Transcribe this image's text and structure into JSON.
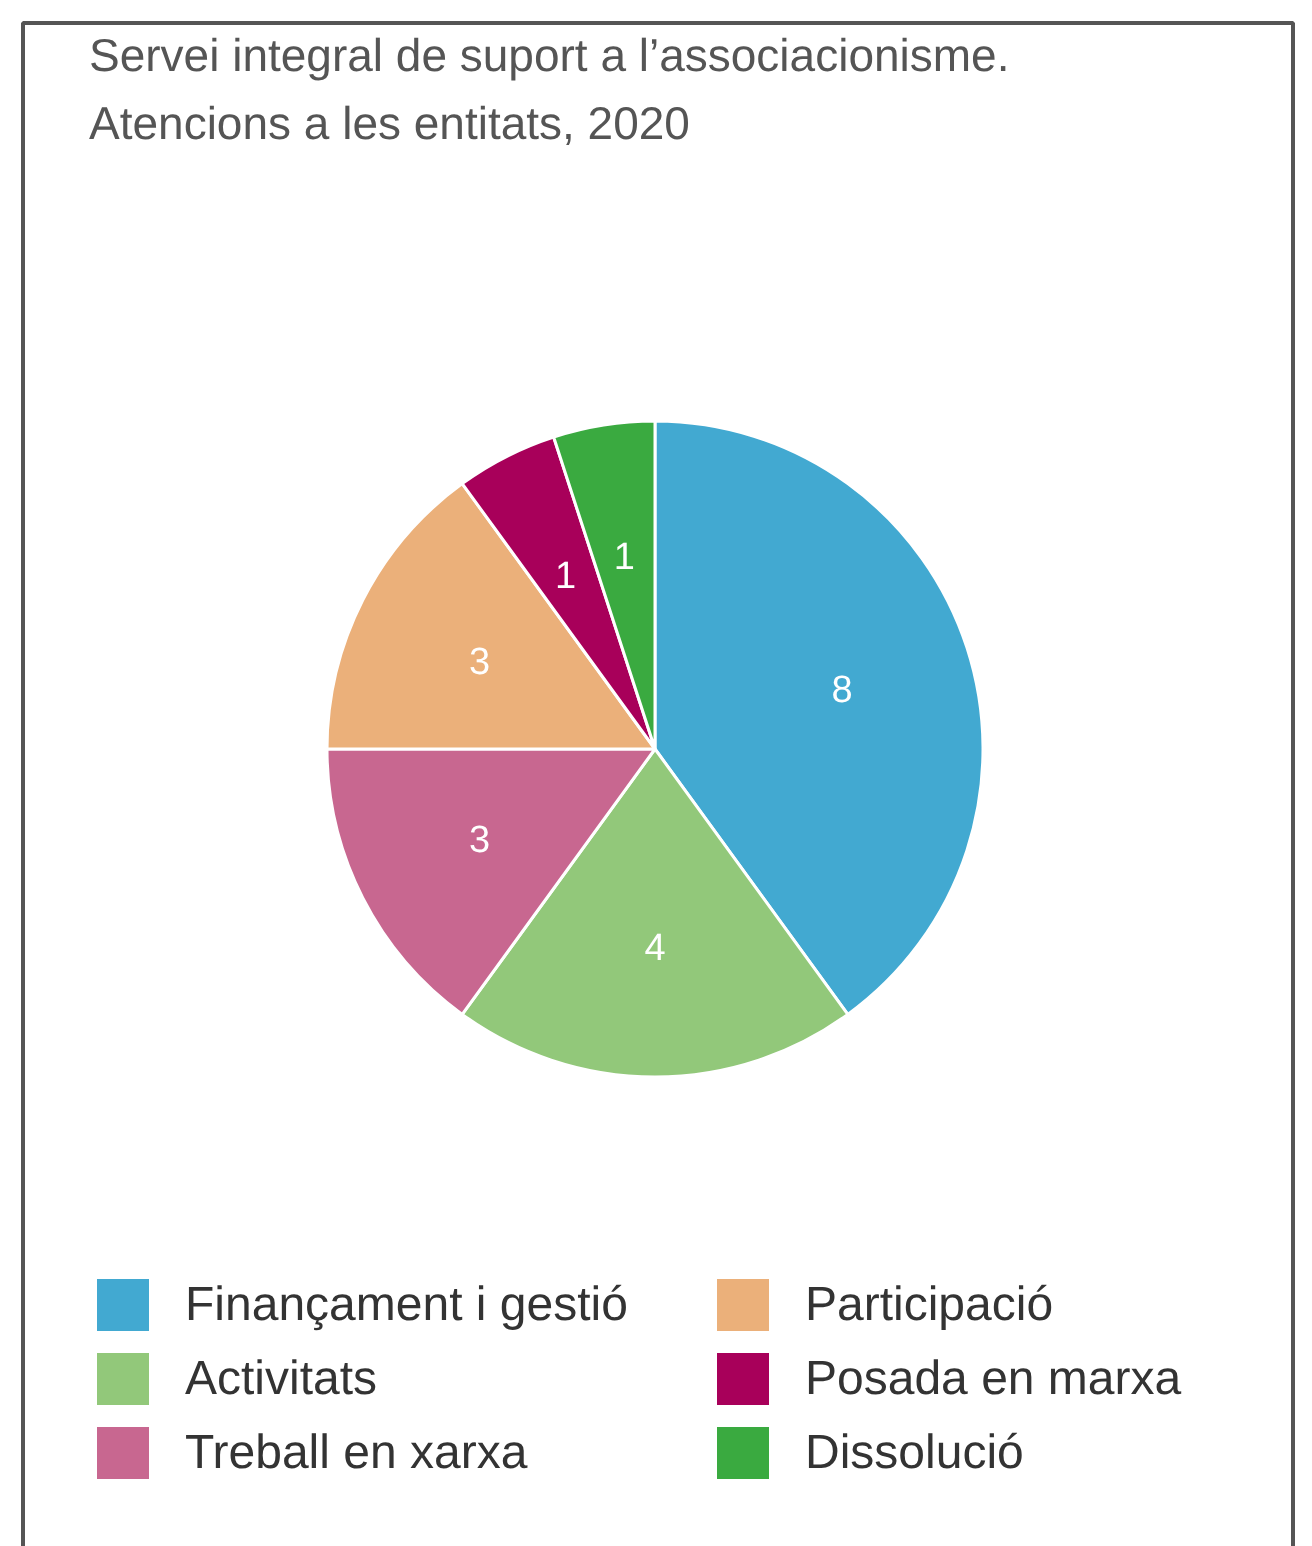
{
  "chart_data": {
    "type": "pie",
    "title": "Servei integral de suport a l’associacionisme.\nAtencions a les entitats, 2020",
    "categories": [
      "Finançament i gestió",
      "Activitats",
      "Treball en xarxa",
      "Participació",
      "Posada en marxa",
      "Dissolució"
    ],
    "values": [
      8,
      4,
      3,
      3,
      1,
      1
    ],
    "colors": [
      "#42a9d1",
      "#92c87a",
      "#c86790",
      "#ebb07a",
      "#a8005a",
      "#3aaa40"
    ],
    "data_labels": true,
    "legend": "bottom"
  }
}
